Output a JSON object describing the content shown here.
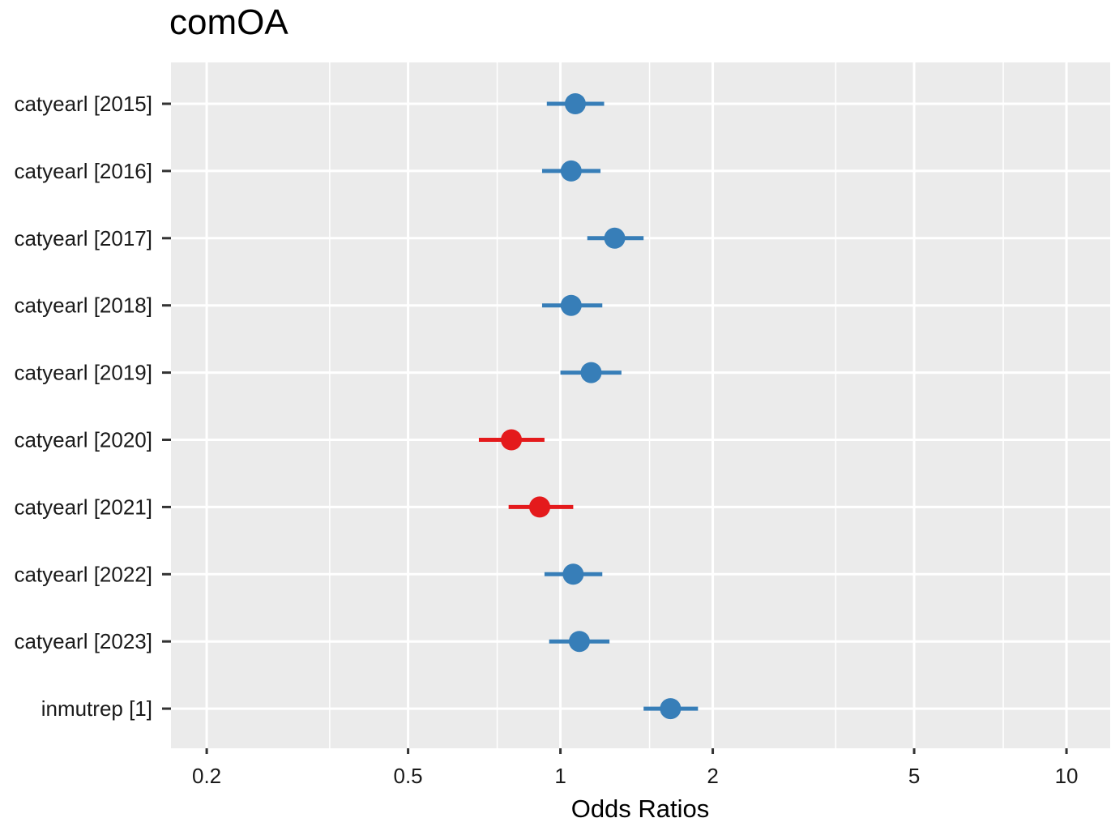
{
  "chart_data": {
    "type": "forest",
    "title": "comOA",
    "xlabel": "Odds Ratios",
    "ylabel": "",
    "x_scale": "log10",
    "xlim": [
      0.17,
      12.2
    ],
    "x_ticks": [
      0.2,
      0.5,
      1,
      2,
      5,
      10
    ],
    "x_tick_labels": [
      "0.2",
      "0.5",
      "1",
      "2",
      "5",
      "10"
    ],
    "x_minor_ticks": [
      0.35,
      0.75,
      1.5,
      3.5,
      7.5
    ],
    "grid": true,
    "legend": "none",
    "colors": {
      "above_one": "#377eb8",
      "below_one": "#e41a1c",
      "panel_background": "#ebebeb",
      "grid": "#ffffff"
    },
    "terms": [
      {
        "label": "catyearl [2015]",
        "estimate": 1.07,
        "ci_low": 0.94,
        "ci_high": 1.22
      },
      {
        "label": "catyearl [2016]",
        "estimate": 1.05,
        "ci_low": 0.92,
        "ci_high": 1.2
      },
      {
        "label": "catyearl [2017]",
        "estimate": 1.28,
        "ci_low": 1.13,
        "ci_high": 1.46
      },
      {
        "label": "catyearl [2018]",
        "estimate": 1.05,
        "ci_low": 0.92,
        "ci_high": 1.21
      },
      {
        "label": "catyearl [2019]",
        "estimate": 1.15,
        "ci_low": 1.0,
        "ci_high": 1.32
      },
      {
        "label": "catyearl [2020]",
        "estimate": 0.8,
        "ci_low": 0.69,
        "ci_high": 0.93
      },
      {
        "label": "catyearl [2021]",
        "estimate": 0.91,
        "ci_low": 0.79,
        "ci_high": 1.06
      },
      {
        "label": "catyearl [2022]",
        "estimate": 1.06,
        "ci_low": 0.93,
        "ci_high": 1.21
      },
      {
        "label": "catyearl [2023]",
        "estimate": 1.09,
        "ci_low": 0.95,
        "ci_high": 1.25
      },
      {
        "label": "inmutrep [1]",
        "estimate": 1.65,
        "ci_low": 1.46,
        "ci_high": 1.87
      }
    ]
  }
}
